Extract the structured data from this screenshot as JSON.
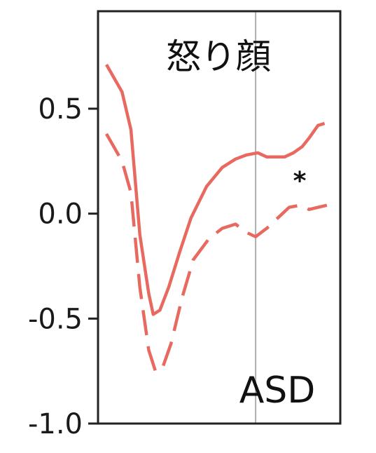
{
  "chart_data": {
    "type": "line",
    "title": "怒り顔",
    "panel_label": "ASD",
    "annotation": "*",
    "xlabel": "",
    "ylabel": "",
    "ylim": [
      -1.0,
      0.75
    ],
    "xlim": [
      0,
      1
    ],
    "yticks": [
      0.5,
      0.0,
      -0.5,
      -1.0
    ],
    "ytick_labels": [
      "0.5",
      "0.0",
      "-0.5",
      "-1.0"
    ],
    "vline_x": 0.67,
    "grid": false,
    "legend": "none",
    "colors": {
      "series": "#e8695f",
      "vline": "#b0b0b0",
      "frame": "#222222"
    },
    "series": [
      {
        "style": "solid",
        "x": [
          0.0,
          0.07,
          0.11,
          0.15,
          0.19,
          0.21,
          0.24,
          0.28,
          0.33,
          0.38,
          0.45,
          0.52,
          0.58,
          0.63,
          0.68,
          0.72,
          0.76,
          0.8,
          0.84,
          0.88,
          0.91,
          0.95,
          0.98
        ],
        "y": [
          0.71,
          0.58,
          0.4,
          -0.1,
          -0.38,
          -0.48,
          -0.46,
          -0.35,
          -0.18,
          -0.02,
          0.13,
          0.22,
          0.26,
          0.28,
          0.29,
          0.27,
          0.27,
          0.27,
          0.29,
          0.32,
          0.36,
          0.42,
          0.43
        ]
      },
      {
        "style": "dashed",
        "x": [
          0.0,
          0.07,
          0.11,
          0.15,
          0.19,
          0.22,
          0.25,
          0.29,
          0.34,
          0.39,
          0.46,
          0.52,
          0.58,
          0.63,
          0.67,
          0.72,
          0.77,
          0.82,
          0.87,
          0.91,
          0.95,
          0.99
        ],
        "y": [
          0.38,
          0.25,
          0.1,
          -0.35,
          -0.65,
          -0.75,
          -0.74,
          -0.62,
          -0.4,
          -0.22,
          -0.12,
          -0.07,
          -0.05,
          -0.09,
          -0.11,
          -0.07,
          -0.02,
          0.03,
          0.04,
          0.02,
          0.03,
          0.04
        ]
      }
    ]
  }
}
